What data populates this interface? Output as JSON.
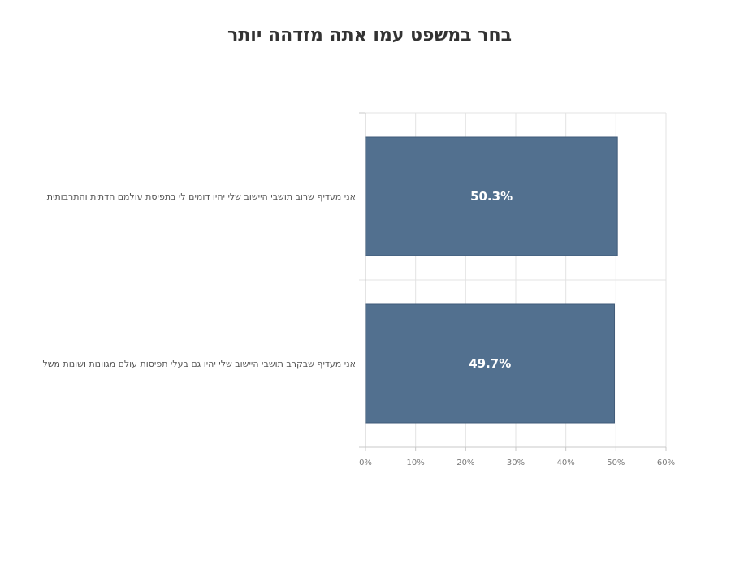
{
  "chart_data": {
    "type": "bar",
    "orientation": "horizontal",
    "title": "בחר במשפט עמו אתה מזדהה יותר",
    "categories": [
      "אני מעדיף שרוב תושבי היישוב שלי יהיו דומים לי בתפיסת עולמם הדתית והתרבותית",
      "אני מעדיף שבקרב תושבי היישוב שלי יהיו גם בעלי תפיסות עולם מגוונות ושונות משל"
    ],
    "values": [
      50.3,
      49.7
    ],
    "data_labels": [
      "50.3%",
      "49.7%"
    ],
    "xlim": [
      0,
      60
    ],
    "x_ticks": [
      0,
      10,
      20,
      30,
      40,
      50,
      60
    ],
    "x_tick_labels": [
      "0%",
      "10%",
      "20%",
      "30%",
      "40%",
      "50%",
      "60%"
    ],
    "grid": true,
    "legend": "none",
    "colors": {
      "bar": "#52708f",
      "bar_border": "#3f5a78",
      "grid": "#e3e3e3",
      "axis": "#c8c8c8",
      "title": "#333333",
      "category_text": "#555555",
      "tick_text": "#7a7a7a",
      "data_label": "#ffffff"
    }
  }
}
